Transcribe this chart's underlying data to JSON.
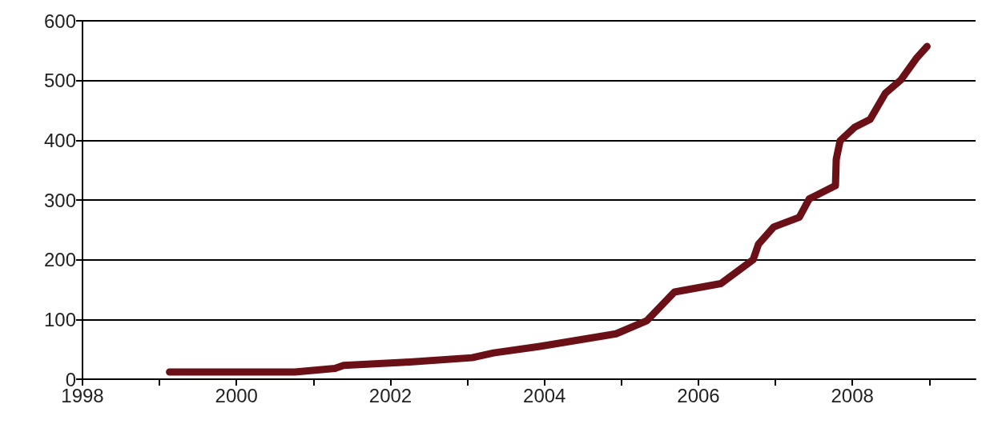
{
  "chart_data": {
    "type": "line",
    "x": [
      1999.13,
      2000.76,
      2001.28,
      2001.39,
      2002.15,
      2003.06,
      2003.34,
      2003.94,
      2004.93,
      2005.33,
      2005.69,
      2006.29,
      2006.71,
      2006.78,
      2006.98,
      2007.31,
      2007.44,
      2007.78,
      2007.79,
      2007.84,
      2008.03,
      2008.23,
      2008.43,
      2008.63,
      2008.83,
      2008.97
    ],
    "series": [
      {
        "color": "#6b1016",
        "values": [
          12,
          12,
          18,
          23,
          28,
          36,
          44,
          55,
          76,
          98,
          146,
          160,
          200,
          226,
          255,
          271,
          302,
          324,
          368,
          399,
          422,
          435,
          479,
          501,
          537,
          557
        ]
      }
    ],
    "xlim": [
      1998,
      2009.6
    ],
    "xticks": [
      1998,
      {
        "value": 1999,
        "label": null
      },
      2000,
      {
        "value": 2001,
        "label": null
      },
      2002,
      {
        "value": 2003,
        "label": null
      },
      2004,
      {
        "value": 2005,
        "label": null
      },
      2006,
      {
        "value": 2007,
        "label": null
      },
      2008,
      {
        "value": 2009,
        "label": null
      }
    ],
    "ylim": [
      0,
      600
    ],
    "yticks": [
      0,
      100,
      200,
      300,
      400,
      500,
      600
    ],
    "grid": "y",
    "line_style": "solid"
  }
}
